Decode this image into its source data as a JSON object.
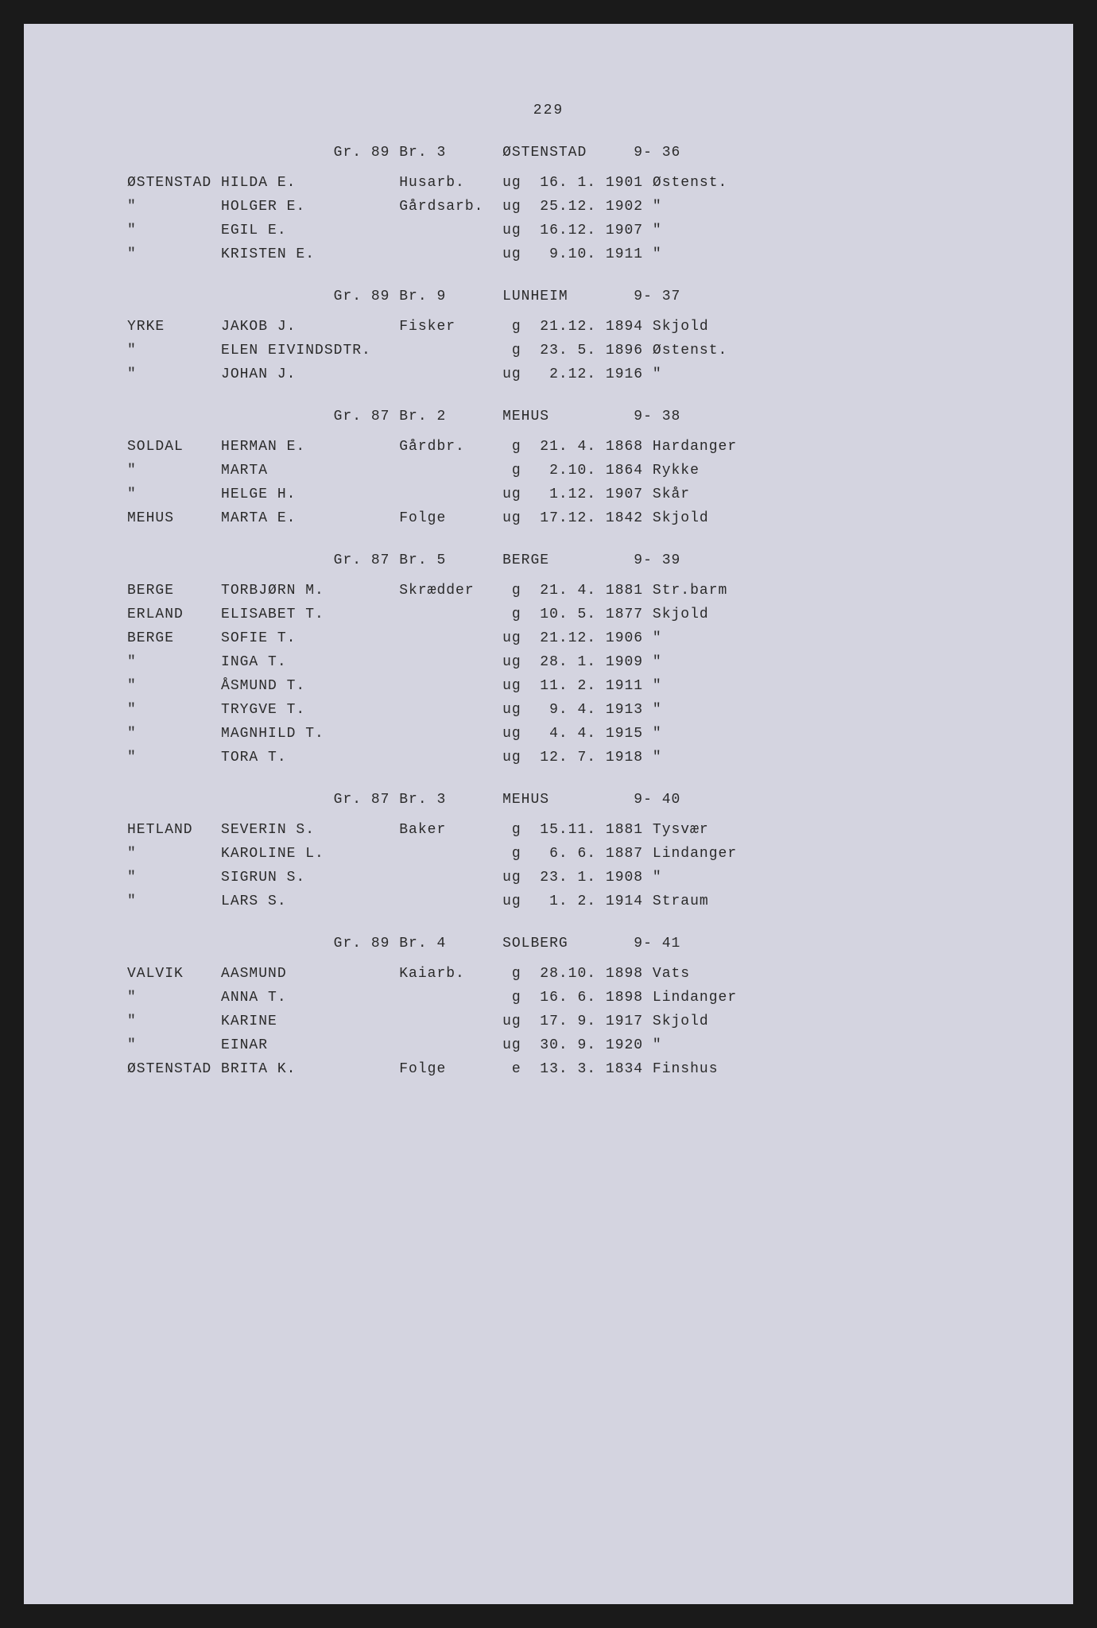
{
  "page_number": "229",
  "background_color": "#d4d4e0",
  "text_color": "#2a2a2a",
  "font_family": "Courier New",
  "sections": [
    {
      "header": {
        "gr_br": "Gr. 89 Br. 3",
        "name": "ØSTENSTAD",
        "ref": "9- 36"
      },
      "rows": [
        {
          "surname": "ØSTENSTAD",
          "given": "HILDA E.",
          "occupation": "Husarb.",
          "status": "ug",
          "date": "16. 1.",
          "year": "1901",
          "place": "Østenst."
        },
        {
          "surname": "\"",
          "given": "HOLGER E.",
          "occupation": "Gårdsarb.",
          "status": "ug",
          "date": "25.12.",
          "year": "1902",
          "place": "\""
        },
        {
          "surname": "\"",
          "given": "EGIL E.",
          "occupation": "",
          "status": "ug",
          "date": "16.12.",
          "year": "1907",
          "place": "\""
        },
        {
          "surname": "\"",
          "given": "KRISTEN E.",
          "occupation": "",
          "status": "ug",
          "date": " 9.10.",
          "year": "1911",
          "place": "\""
        }
      ]
    },
    {
      "header": {
        "gr_br": "Gr. 89 Br. 9",
        "name": "LUNHEIM",
        "ref": "9- 37"
      },
      "rows": [
        {
          "surname": "YRKE",
          "given": "JAKOB J.",
          "occupation": "Fisker",
          "status": "g",
          "date": "21.12.",
          "year": "1894",
          "place": "Skjold"
        },
        {
          "surname": "\"",
          "given": "ELEN EIVINDSDTR.",
          "occupation": "",
          "status": "g",
          "date": "23. 5.",
          "year": "1896",
          "place": "Østenst."
        },
        {
          "surname": "\"",
          "given": "JOHAN J.",
          "occupation": "",
          "status": "ug",
          "date": " 2.12.",
          "year": "1916",
          "place": "\""
        }
      ]
    },
    {
      "header": {
        "gr_br": "Gr. 87 Br. 2",
        "name": "MEHUS",
        "ref": "9- 38"
      },
      "rows": [
        {
          "surname": "SOLDAL",
          "given": "HERMAN E.",
          "occupation": "Gårdbr.",
          "status": "g",
          "date": "21. 4.",
          "year": "1868",
          "place": "Hardanger"
        },
        {
          "surname": "\"",
          "given": "MARTA",
          "occupation": "",
          "status": "g",
          "date": " 2.10.",
          "year": "1864",
          "place": "Rykke"
        },
        {
          "surname": "\"",
          "given": "HELGE H.",
          "occupation": "",
          "status": "ug",
          "date": " 1.12.",
          "year": "1907",
          "place": "Skår"
        },
        {
          "surname": "MEHUS",
          "given": "MARTA E.",
          "occupation": "Folge",
          "status": "ug",
          "date": "17.12.",
          "year": "1842",
          "place": "Skjold"
        }
      ]
    },
    {
      "header": {
        "gr_br": "Gr. 87 Br. 5",
        "name": "BERGE",
        "ref": "9- 39"
      },
      "rows": [
        {
          "surname": "BERGE",
          "given": "TORBJØRN M.",
          "occupation": "Skrædder",
          "status": "g",
          "date": "21. 4.",
          "year": "1881",
          "place": "Str.barm"
        },
        {
          "surname": "ERLAND",
          "given": "ELISABET T.",
          "occupation": "",
          "status": "g",
          "date": "10. 5.",
          "year": "1877",
          "place": "Skjold"
        },
        {
          "surname": "BERGE",
          "given": "SOFIE T.",
          "occupation": "",
          "status": "ug",
          "date": "21.12.",
          "year": "1906",
          "place": "\""
        },
        {
          "surname": "\"",
          "given": "INGA T.",
          "occupation": "",
          "status": "ug",
          "date": "28. 1.",
          "year": "1909",
          "place": "\""
        },
        {
          "surname": "\"",
          "given": "ÅSMUND T.",
          "occupation": "",
          "status": "ug",
          "date": "11. 2.",
          "year": "1911",
          "place": "\""
        },
        {
          "surname": "\"",
          "given": "TRYGVE T.",
          "occupation": "",
          "status": "ug",
          "date": " 9. 4.",
          "year": "1913",
          "place": "\""
        },
        {
          "surname": "\"",
          "given": "MAGNHILD T.",
          "occupation": "",
          "status": "ug",
          "date": " 4. 4.",
          "year": "1915",
          "place": "\""
        },
        {
          "surname": "\"",
          "given": "TORA T.",
          "occupation": "",
          "status": "ug",
          "date": "12. 7.",
          "year": "1918",
          "place": "\""
        }
      ]
    },
    {
      "header": {
        "gr_br": "Gr. 87 Br. 3",
        "name": "MEHUS",
        "ref": "9- 40"
      },
      "rows": [
        {
          "surname": "HETLAND",
          "given": "SEVERIN S.",
          "occupation": "Baker",
          "status": "g",
          "date": "15.11.",
          "year": "1881",
          "place": "Tysvær"
        },
        {
          "surname": "\"",
          "given": "KAROLINE L.",
          "occupation": "",
          "status": "g",
          "date": " 6. 6.",
          "year": "1887",
          "place": "Lindanger"
        },
        {
          "surname": "\"",
          "given": "SIGRUN S.",
          "occupation": "",
          "status": "ug",
          "date": "23. 1.",
          "year": "1908",
          "place": "\""
        },
        {
          "surname": "\"",
          "given": "LARS S.",
          "occupation": "",
          "status": "ug",
          "date": " 1. 2.",
          "year": "1914",
          "place": "Straum"
        }
      ]
    },
    {
      "header": {
        "gr_br": "Gr. 89 Br. 4",
        "name": "SOLBERG",
        "ref": "9- 41"
      },
      "rows": [
        {
          "surname": "VALVIK",
          "given": "AASMUND",
          "occupation": "Kaiarb.",
          "status": "g",
          "date": "28.10.",
          "year": "1898",
          "place": "Vats"
        },
        {
          "surname": "\"",
          "given": "ANNA T.",
          "occupation": "",
          "status": "g",
          "date": "16. 6.",
          "year": "1898",
          "place": "Lindanger"
        },
        {
          "surname": "\"",
          "given": "KARINE",
          "occupation": "",
          "status": "ug",
          "date": "17. 9.",
          "year": "1917",
          "place": "Skjold"
        },
        {
          "surname": "\"",
          "given": "EINAR",
          "occupation": "",
          "status": "ug",
          "date": "30. 9.",
          "year": "1920",
          "place": "\""
        },
        {
          "surname": "ØSTENSTAD",
          "given": "BRITA K.",
          "occupation": "Folge",
          "status": "e",
          "date": "13. 3.",
          "year": "1834",
          "place": "Finshus"
        }
      ]
    }
  ]
}
